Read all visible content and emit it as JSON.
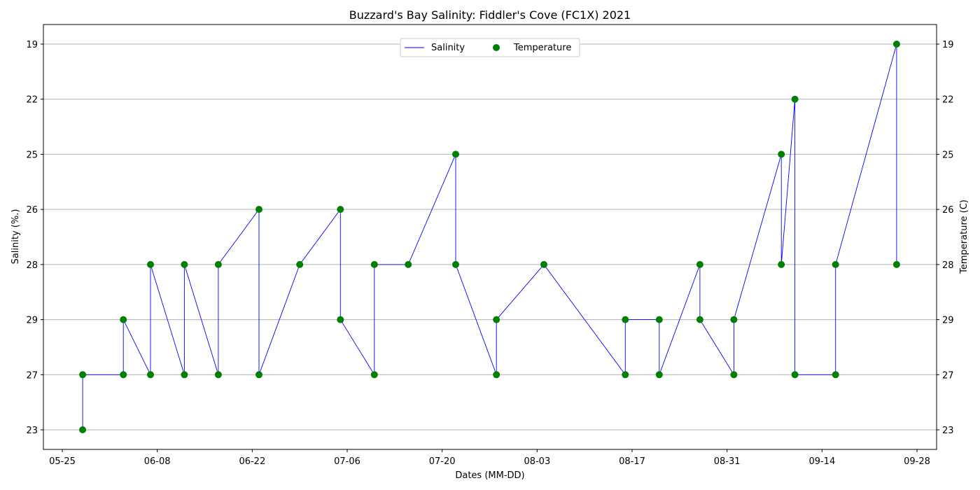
{
  "chart_data": {
    "type": "line",
    "title": "Buzzard's Bay Salinity: Fiddler's Cove (FC1X) 2021",
    "xlabel": "Dates (MM-DD)",
    "ylabel_left": "Salinity (%.)",
    "ylabel_right": "Temperature (C)",
    "x_ticks": [
      "05-25",
      "06-08",
      "06-22",
      "07-06",
      "07-20",
      "08-03",
      "08-17",
      "08-31",
      "09-14",
      "09-28"
    ],
    "y_categories": [
      "23",
      "27",
      "29",
      "28",
      "26",
      "25",
      "22",
      "19"
    ],
    "grid": "horizontal",
    "legend_position": "top-center",
    "colors": {
      "salinity": "#0000ff",
      "temperature": "#008000"
    },
    "series": [
      {
        "name": "Salinity",
        "kind": "line",
        "points": [
          {
            "x": "05-28",
            "y": "23"
          },
          {
            "x": "05-28",
            "y": "27"
          },
          {
            "x": "06-03",
            "y": "27"
          },
          {
            "x": "06-03",
            "y": "29"
          },
          {
            "x": "06-07",
            "y": "27"
          },
          {
            "x": "06-07",
            "y": "28"
          },
          {
            "x": "06-12",
            "y": "27"
          },
          {
            "x": "06-12",
            "y": "28"
          },
          {
            "x": "06-17",
            "y": "27"
          },
          {
            "x": "06-17",
            "y": "28"
          },
          {
            "x": "06-23",
            "y": "26"
          },
          {
            "x": "06-23",
            "y": "27"
          },
          {
            "x": "06-29",
            "y": "28"
          },
          {
            "x": "07-05",
            "y": "26"
          },
          {
            "x": "07-05",
            "y": "29"
          },
          {
            "x": "07-10",
            "y": "27"
          },
          {
            "x": "07-10",
            "y": "28"
          },
          {
            "x": "07-15",
            "y": "28"
          },
          {
            "x": "07-22",
            "y": "25"
          },
          {
            "x": "07-22",
            "y": "28"
          },
          {
            "x": "07-28",
            "y": "27"
          },
          {
            "x": "07-28",
            "y": "29"
          },
          {
            "x": "08-04",
            "y": "28"
          },
          {
            "x": "08-16",
            "y": "27"
          },
          {
            "x": "08-16",
            "y": "29"
          },
          {
            "x": "08-21",
            "y": "29"
          },
          {
            "x": "08-21",
            "y": "27"
          },
          {
            "x": "08-27",
            "y": "28"
          },
          {
            "x": "08-27",
            "y": "29"
          },
          {
            "x": "09-01",
            "y": "27"
          },
          {
            "x": "09-01",
            "y": "29"
          },
          {
            "x": "09-08",
            "y": "25"
          },
          {
            "x": "09-08",
            "y": "28"
          },
          {
            "x": "09-10",
            "y": "22"
          },
          {
            "x": "09-10",
            "y": "27"
          },
          {
            "x": "09-16",
            "y": "27"
          },
          {
            "x": "09-16",
            "y": "28"
          },
          {
            "x": "09-25",
            "y": "19"
          },
          {
            "x": "09-25",
            "y": "28"
          }
        ]
      },
      {
        "name": "Temperature",
        "kind": "scatter",
        "points": [
          {
            "x": "05-28",
            "y": "23"
          },
          {
            "x": "05-28",
            "y": "27"
          },
          {
            "x": "06-03",
            "y": "27"
          },
          {
            "x": "06-03",
            "y": "29"
          },
          {
            "x": "06-07",
            "y": "27"
          },
          {
            "x": "06-07",
            "y": "28"
          },
          {
            "x": "06-12",
            "y": "27"
          },
          {
            "x": "06-12",
            "y": "28"
          },
          {
            "x": "06-17",
            "y": "27"
          },
          {
            "x": "06-17",
            "y": "28"
          },
          {
            "x": "06-23",
            "y": "26"
          },
          {
            "x": "06-23",
            "y": "27"
          },
          {
            "x": "06-29",
            "y": "28"
          },
          {
            "x": "07-05",
            "y": "26"
          },
          {
            "x": "07-05",
            "y": "29"
          },
          {
            "x": "07-10",
            "y": "27"
          },
          {
            "x": "07-10",
            "y": "28"
          },
          {
            "x": "07-15",
            "y": "28"
          },
          {
            "x": "07-22",
            "y": "25"
          },
          {
            "x": "07-22",
            "y": "28"
          },
          {
            "x": "07-28",
            "y": "27"
          },
          {
            "x": "07-28",
            "y": "29"
          },
          {
            "x": "08-04",
            "y": "28"
          },
          {
            "x": "08-16",
            "y": "27"
          },
          {
            "x": "08-16",
            "y": "29"
          },
          {
            "x": "08-21",
            "y": "29"
          },
          {
            "x": "08-21",
            "y": "27"
          },
          {
            "x": "08-27",
            "y": "28"
          },
          {
            "x": "08-27",
            "y": "29"
          },
          {
            "x": "09-01",
            "y": "27"
          },
          {
            "x": "09-01",
            "y": "29"
          },
          {
            "x": "09-08",
            "y": "25"
          },
          {
            "x": "09-08",
            "y": "28"
          },
          {
            "x": "09-10",
            "y": "22"
          },
          {
            "x": "09-10",
            "y": "27"
          },
          {
            "x": "09-16",
            "y": "27"
          },
          {
            "x": "09-16",
            "y": "28"
          },
          {
            "x": "09-25",
            "y": "19"
          },
          {
            "x": "09-25",
            "y": "28"
          }
        ]
      }
    ]
  }
}
